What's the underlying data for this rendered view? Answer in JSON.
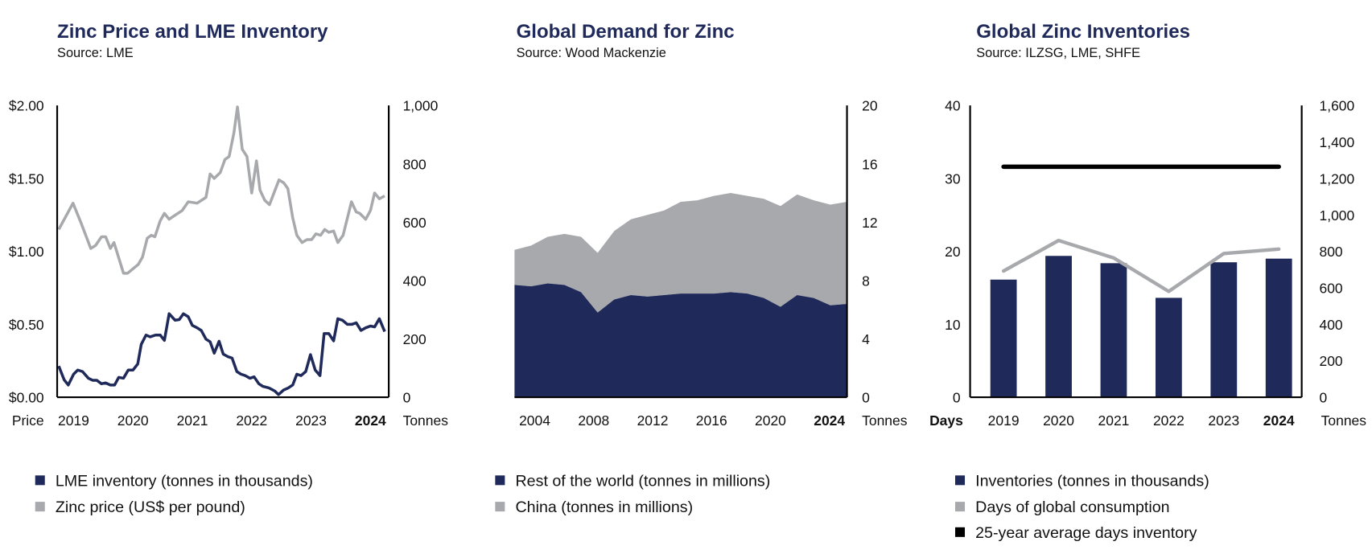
{
  "colors": {
    "navy": "#1f2a5a",
    "gray": "#a7a9ac",
    "black": "#000000"
  },
  "chart_data": [
    {
      "type": "line",
      "title": "Zinc Price and LME Inventory",
      "subtitle": "Source: LME",
      "left_axis_label": "Price",
      "right_axis_label": "Tonnes",
      "xlim": [
        2019,
        2024.57
      ],
      "x_tick_labels": [
        "2019",
        "2020",
        "2021",
        "2022",
        "2023",
        "2024"
      ],
      "left_ylim": [
        0,
        2
      ],
      "left_tick_labels": [
        "$0.00",
        "$0.50",
        "$1.00",
        "$1.50",
        "$2.00"
      ],
      "right_ylim": [
        0,
        1000
      ],
      "right_tick_labels": [
        "0",
        "200",
        "400",
        "600",
        "800",
        "1,000"
      ],
      "grid": false,
      "legend": "bottom",
      "series": [
        {
          "name": "LME inventory (tonnes in thousands)",
          "axis": "right",
          "color": "#1f2a5a",
          "x": [
            2019.0,
            2019.09,
            2019.16,
            2019.25,
            2019.32,
            2019.4,
            2019.5,
            2019.57,
            2019.64,
            2019.72,
            2019.79,
            2019.87,
            2019.94,
            2020.01,
            2020.09,
            2020.17,
            2020.25,
            2020.33,
            2020.39,
            2020.47,
            2020.54,
            2020.63,
            2020.71,
            2020.78,
            2020.86,
            2020.96,
            2021.03,
            2021.1,
            2021.18,
            2021.25,
            2021.33,
            2021.4,
            2021.48,
            2021.55,
            2021.62,
            2021.7,
            2021.77,
            2021.85,
            2021.92,
            2022.0,
            2022.07,
            2022.14,
            2022.22,
            2022.29,
            2022.37,
            2022.44,
            2022.54,
            2022.64,
            2022.7,
            2022.79,
            2022.86,
            2022.94,
            2023.01,
            2023.08,
            2023.16,
            2023.24,
            2023.32,
            2023.4,
            2023.47,
            2023.55,
            2023.63,
            2023.7,
            2023.78,
            2023.86,
            2023.94,
            2024.01,
            2024.09,
            2024.17,
            2024.25,
            2024.32,
            2024.4,
            2024.49
          ],
          "y": [
            107,
            60,
            42,
            79,
            93,
            88,
            65,
            58,
            58,
            46,
            49,
            42,
            42,
            68,
            65,
            93,
            93,
            114,
            181,
            213,
            207,
            213,
            213,
            195,
            286,
            264,
            266,
            286,
            276,
            246,
            238,
            229,
            199,
            190,
            151,
            192,
            148,
            139,
            134,
            88,
            79,
            74,
            65,
            70,
            46,
            37,
            32,
            21,
            9,
            25,
            31,
            42,
            79,
            74,
            88,
            146,
            93,
            74,
            218,
            218,
            193,
            269,
            264,
            250,
            250,
            255,
            229,
            238,
            244,
            241,
            269,
            225
          ]
        },
        {
          "name": "Zinc price (US$ per pound)",
          "axis": "left",
          "color": "#a7a9ac",
          "x": [
            2019.0,
            2019.24,
            2019.37,
            2019.54,
            2019.62,
            2019.72,
            2019.79,
            2019.87,
            2019.93,
            2020.09,
            2020.16,
            2020.34,
            2020.41,
            2020.49,
            2020.56,
            2020.62,
            2020.71,
            2020.78,
            2020.86,
            2020.93,
            2021.08,
            2021.18,
            2021.33,
            2021.48,
            2021.55,
            2021.62,
            2021.72,
            2021.8,
            2021.87,
            2021.95,
            2022.01,
            2022.09,
            2022.17,
            2022.25,
            2022.33,
            2022.39,
            2022.47,
            2022.55,
            2022.71,
            2022.79,
            2022.86,
            2022.94,
            2023.01,
            2023.1,
            2023.18,
            2023.26,
            2023.33,
            2023.41,
            2023.48,
            2023.55,
            2023.63,
            2023.7,
            2023.79,
            2023.93,
            2024.01,
            2024.07,
            2024.17,
            2024.25,
            2024.32,
            2024.4,
            2024.49
          ],
          "y": [
            1.15,
            1.33,
            1.2,
            1.02,
            1.04,
            1.1,
            1.1,
            1.02,
            1.06,
            0.85,
            0.85,
            0.91,
            0.96,
            1.09,
            1.11,
            1.1,
            1.21,
            1.26,
            1.22,
            1.24,
            1.28,
            1.34,
            1.33,
            1.37,
            1.53,
            1.5,
            1.54,
            1.63,
            1.65,
            1.81,
            1.99,
            1.7,
            1.65,
            1.4,
            1.62,
            1.42,
            1.35,
            1.32,
            1.49,
            1.47,
            1.43,
            1.23,
            1.11,
            1.06,
            1.08,
            1.08,
            1.12,
            1.11,
            1.15,
            1.13,
            1.14,
            1.06,
            1.11,
            1.34,
            1.27,
            1.26,
            1.22,
            1.28,
            1.4,
            1.36,
            1.38
          ]
        }
      ]
    },
    {
      "type": "area",
      "stacked": true,
      "title": "Global Demand for Zinc",
      "subtitle": "Source: Wood Mackenzie",
      "right_axis_label": "Tonnes",
      "x": [
        2004,
        2005,
        2006,
        2007,
        2008,
        2009,
        2010,
        2011,
        2012,
        2013,
        2014,
        2015,
        2016,
        2017,
        2018,
        2019,
        2020,
        2021,
        2022,
        2023,
        2024
      ],
      "x_tick_labels": [
        "2004",
        "2008",
        "2012",
        "2016",
        "2020",
        "2024"
      ],
      "ylim": [
        0,
        20
      ],
      "y_tick_labels": [
        "0",
        "4",
        "8",
        "12",
        "16",
        "20"
      ],
      "grid": false,
      "legend": "bottom",
      "series": [
        {
          "name": "Rest of the world (tonnes in millions)",
          "color": "#1f2a5a",
          "values": [
            7.7,
            7.6,
            7.8,
            7.7,
            7.2,
            5.8,
            6.7,
            7.0,
            6.9,
            7.0,
            7.1,
            7.1,
            7.1,
            7.2,
            7.1,
            6.8,
            6.2,
            7.0,
            6.8,
            6.3,
            6.4
          ]
        },
        {
          "name": "China (tonnes in millions)",
          "color": "#a7a9ac",
          "values": [
            2.4,
            2.8,
            3.2,
            3.5,
            3.8,
            4.1,
            4.7,
            5.2,
            5.6,
            5.8,
            6.3,
            6.4,
            6.7,
            6.8,
            6.7,
            6.8,
            6.9,
            6.9,
            6.7,
            6.9,
            7.0
          ]
        }
      ]
    },
    {
      "type": "bar",
      "title": "Global Zinc Inventories",
      "subtitle": "Source: ILZSG, LME, SHFE",
      "left_axis_label": "Days",
      "right_axis_label": "Tonnes",
      "categories": [
        "2019",
        "2020",
        "2021",
        "2022",
        "2023",
        "2024"
      ],
      "left_ylim": [
        0,
        40
      ],
      "left_tick_labels": [
        "0",
        "10",
        "20",
        "30",
        "40"
      ],
      "right_ylim": [
        0,
        1600
      ],
      "right_tick_labels": [
        "0",
        "200",
        "400",
        "600",
        "800",
        "1,000",
        "1,200",
        "1,400",
        "1,600"
      ],
      "grid": false,
      "legend": "bottom",
      "series": [
        {
          "name": "Inventories (tonnes in thousands)",
          "type": "bar",
          "axis": "right",
          "color": "#1f2a5a",
          "values": [
            645,
            775,
            735,
            545,
            740,
            760
          ]
        },
        {
          "name": "Days of global consumption",
          "type": "line",
          "axis": "left",
          "color": "#a7a9ac",
          "values": [
            17.3,
            21.5,
            19.1,
            14.5,
            19.7,
            20.3
          ]
        },
        {
          "name": "25-year average days inventory",
          "type": "line",
          "axis": "left",
          "color": "#000000",
          "values": [
            31.6,
            31.6,
            31.6,
            31.6,
            31.6,
            31.6
          ]
        }
      ]
    }
  ]
}
